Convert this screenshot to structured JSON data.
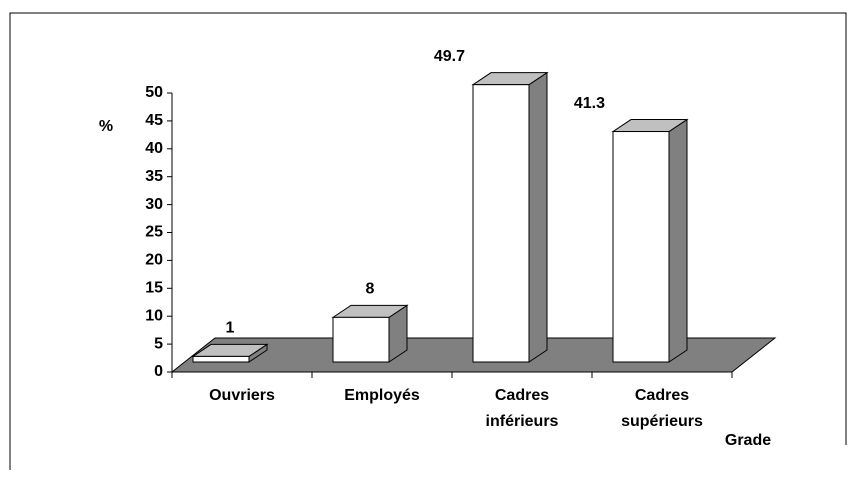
{
  "chart_data": {
    "type": "bar3d",
    "y_label": "%",
    "x_label": "Grade",
    "categories": [
      "Ouvriers",
      "Employés",
      "Cadres inférieurs",
      "Cadres supérieurs"
    ],
    "values": [
      1,
      8,
      49.7,
      41.3
    ],
    "color": "#ffffff",
    "side_color": "#808080",
    "top_color": "#c0c0c0",
    "floor_color": "#808080",
    "ylim": [
      0,
      50
    ],
    "yticks": [
      0,
      5,
      10,
      15,
      20,
      25,
      30,
      35,
      40,
      45,
      50
    ]
  }
}
